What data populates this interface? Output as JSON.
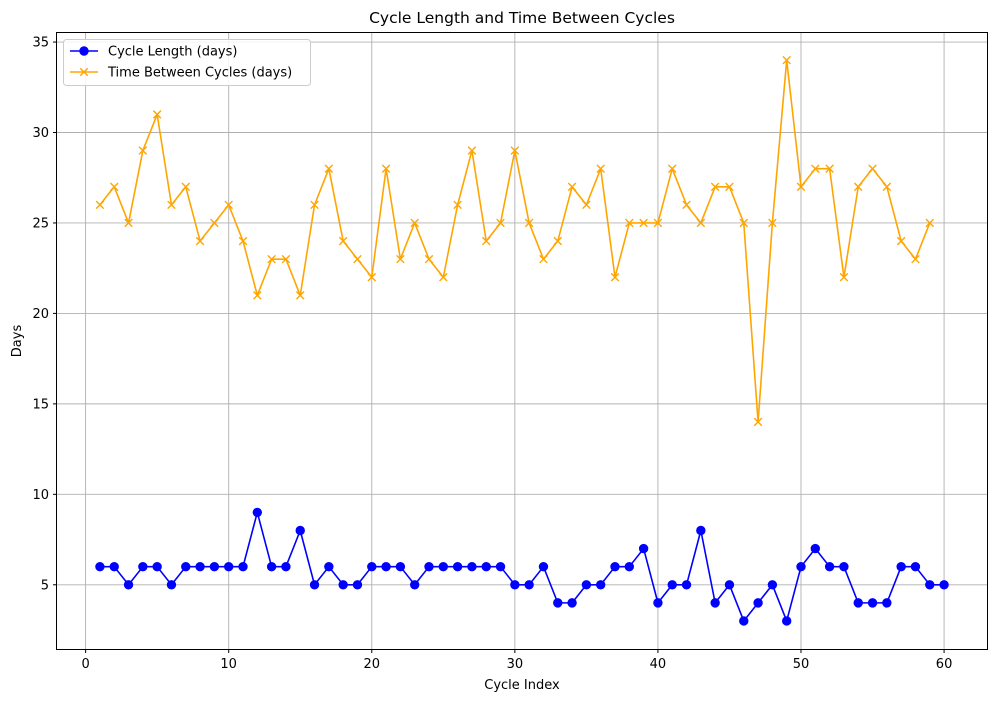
{
  "chart_data": {
    "type": "line",
    "title": "Cycle Length and Time Between Cycles",
    "xlabel": "Cycle Index",
    "ylabel": "Days",
    "xlim": [
      -2,
      63
    ],
    "ylim": [
      1.45,
      35.5
    ],
    "xticks": [
      0,
      10,
      20,
      30,
      40,
      50,
      60
    ],
    "yticks": [
      5,
      10,
      15,
      20,
      25,
      30,
      35
    ],
    "grid": true,
    "legend_position": "top-left",
    "series": [
      {
        "name": "Cycle Length (days)",
        "color": "#0000ff",
        "marker": "circle",
        "x": [
          1,
          2,
          3,
          4,
          5,
          6,
          7,
          8,
          9,
          10,
          11,
          12,
          13,
          14,
          15,
          16,
          17,
          18,
          19,
          20,
          21,
          22,
          23,
          24,
          25,
          26,
          27,
          28,
          29,
          30,
          31,
          32,
          33,
          34,
          35,
          36,
          37,
          38,
          39,
          40,
          41,
          42,
          43,
          44,
          45,
          46,
          47,
          48,
          49,
          50,
          51,
          52,
          53,
          54,
          55,
          56,
          57,
          58,
          59,
          60
        ],
        "values": [
          6,
          6,
          5,
          6,
          6,
          5,
          6,
          6,
          6,
          6,
          6,
          9,
          6,
          6,
          8,
          5,
          6,
          5,
          5,
          6,
          6,
          6,
          5,
          6,
          6,
          6,
          6,
          6,
          6,
          5,
          5,
          6,
          4,
          4,
          5,
          5,
          6,
          6,
          7,
          4,
          5,
          5,
          8,
          4,
          5,
          3,
          4,
          5,
          3,
          6,
          7,
          6,
          6,
          4,
          4,
          4,
          6,
          6,
          5,
          5
        ]
      },
      {
        "name": "Time Between Cycles (days)",
        "color": "#ffa500",
        "marker": "x",
        "x": [
          1,
          2,
          3,
          4,
          5,
          6,
          7,
          8,
          9,
          10,
          11,
          12,
          13,
          14,
          15,
          16,
          17,
          18,
          19,
          20,
          21,
          22,
          23,
          24,
          25,
          26,
          27,
          28,
          29,
          30,
          31,
          32,
          33,
          34,
          35,
          36,
          37,
          38,
          39,
          40,
          41,
          42,
          43,
          44,
          45,
          46,
          47,
          48,
          49,
          50,
          51,
          52,
          53,
          54,
          55,
          56,
          57,
          58,
          59
        ],
        "values": [
          26,
          27,
          25,
          29,
          31,
          26,
          27,
          24,
          25,
          26,
          24,
          21,
          23,
          23,
          21,
          26,
          28,
          24,
          23,
          22,
          28,
          23,
          25,
          23,
          22,
          26,
          29,
          24,
          25,
          29,
          25,
          23,
          24,
          27,
          26,
          28,
          22,
          25,
          25,
          25,
          28,
          26,
          25,
          27,
          27,
          25,
          14,
          25,
          34,
          27,
          28,
          28,
          22,
          27,
          28,
          27,
          24,
          23,
          25
        ]
      }
    ]
  }
}
